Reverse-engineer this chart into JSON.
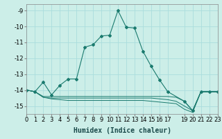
{
  "xlabel": "Humidex (Indice chaleur)",
  "bg_color": "#cceee8",
  "grid_color": "#aadddd",
  "line_color": "#1a7a6e",
  "x_main": [
    0,
    1,
    2,
    3,
    4,
    5,
    6,
    7,
    8,
    9,
    10,
    11,
    12,
    13,
    14,
    15,
    16,
    17,
    19,
    20,
    21,
    22,
    23
  ],
  "y_main": [
    -14.0,
    -14.1,
    -13.5,
    -14.3,
    -13.7,
    -13.3,
    -13.3,
    -11.3,
    -11.15,
    -10.6,
    -10.55,
    -9.0,
    -10.05,
    -10.1,
    -11.55,
    -12.5,
    -13.35,
    -14.1,
    -14.7,
    -15.3,
    -14.1,
    -14.1,
    -14.1
  ],
  "x_line2": [
    0,
    1,
    2,
    3,
    4,
    5,
    6,
    7,
    8,
    9,
    10,
    11,
    12,
    13,
    14,
    15,
    16,
    17,
    18,
    19,
    20,
    21,
    22,
    23
  ],
  "y_line2": [
    -14.0,
    -14.1,
    -14.4,
    -14.4,
    -14.4,
    -14.4,
    -14.4,
    -14.4,
    -14.4,
    -14.4,
    -14.4,
    -14.4,
    -14.4,
    -14.4,
    -14.4,
    -14.4,
    -14.4,
    -14.4,
    -14.45,
    -14.7,
    -15.28,
    -14.1,
    -14.1,
    -14.1
  ],
  "x_line3": [
    0,
    1,
    2,
    3,
    4,
    5,
    6,
    7,
    8,
    9,
    10,
    11,
    12,
    13,
    14,
    15,
    16,
    17,
    18,
    19,
    20,
    21,
    22,
    23
  ],
  "y_line3": [
    -14.0,
    -14.1,
    -14.45,
    -14.5,
    -14.5,
    -14.5,
    -14.5,
    -14.5,
    -14.5,
    -14.5,
    -14.5,
    -14.5,
    -14.5,
    -14.5,
    -14.5,
    -14.5,
    -14.55,
    -14.6,
    -14.7,
    -15.0,
    -15.3,
    -14.1,
    -14.1,
    -14.1
  ],
  "x_line4": [
    0,
    1,
    2,
    3,
    4,
    5,
    6,
    7,
    8,
    9,
    10,
    11,
    12,
    13,
    14,
    15,
    16,
    17,
    18,
    19,
    20,
    21,
    22,
    23
  ],
  "y_line4": [
    -14.0,
    -14.1,
    -14.45,
    -14.55,
    -14.6,
    -14.65,
    -14.65,
    -14.65,
    -14.65,
    -14.65,
    -14.65,
    -14.65,
    -14.65,
    -14.65,
    -14.65,
    -14.7,
    -14.75,
    -14.8,
    -14.85,
    -15.2,
    -15.4,
    -14.1,
    -14.1,
    -14.1
  ],
  "xlim": [
    0,
    23
  ],
  "ylim": [
    -15.5,
    -8.6
  ],
  "yticks": [
    -15,
    -14,
    -13,
    -12,
    -11,
    -10,
    -9
  ],
  "xticks": [
    0,
    1,
    2,
    3,
    4,
    5,
    6,
    7,
    8,
    9,
    10,
    11,
    12,
    13,
    14,
    15,
    16,
    17,
    19,
    20,
    21,
    22,
    23
  ],
  "xtick_labels": [
    "0",
    "1",
    "2",
    "3",
    "4",
    "5",
    "6",
    "7",
    "8",
    "9",
    "10",
    "11",
    "12",
    "13",
    "14",
    "15",
    "16",
    "17",
    "19",
    "20",
    "21",
    "22",
    "23"
  ],
  "fontsize_label": 7,
  "fontsize_tick": 6
}
